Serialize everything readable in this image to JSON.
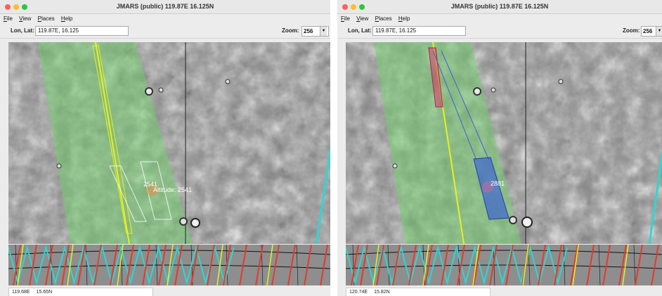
{
  "windows": [
    {
      "title": "JMARS (public) 119.87E 16.125N",
      "menu": [
        "File",
        "View",
        "Places",
        "Help"
      ],
      "lonlat_label": "Lon, Lat:",
      "lonlat_value": "119.87E, 16.125",
      "zoom_label": "Zoom:",
      "zoom_value": "256",
      "map_labels": [
        "2541",
        "Altitude: 2541"
      ],
      "status": {
        "lon": "119.68E",
        "lat": "15.65N"
      }
    },
    {
      "title": "JMARS (public) 119.87E 16.125N",
      "menu": [
        "File",
        "View",
        "Places",
        "Help"
      ],
      "lonlat_label": "Lon, Lat:",
      "lonlat_value": "119.87E, 16.125",
      "zoom_label": "Zoom:",
      "zoom_value": "256",
      "map_labels": [
        "2881"
      ],
      "status": {
        "lon": "120.74E",
        "lat": "15.82N"
      }
    }
  ],
  "colors": {
    "footprint_green": "#6fd26a",
    "track_yellow": "#e6f21a",
    "track_cyan": "#2fd6d2",
    "track_red": "#e23a2a",
    "selection_blue": "#3b5fd6",
    "selection_red": "#d83a6a"
  },
  "icons": [
    "chevron-down-icon",
    "close-light-icon",
    "minimize-light-icon",
    "maximize-light-icon"
  ]
}
